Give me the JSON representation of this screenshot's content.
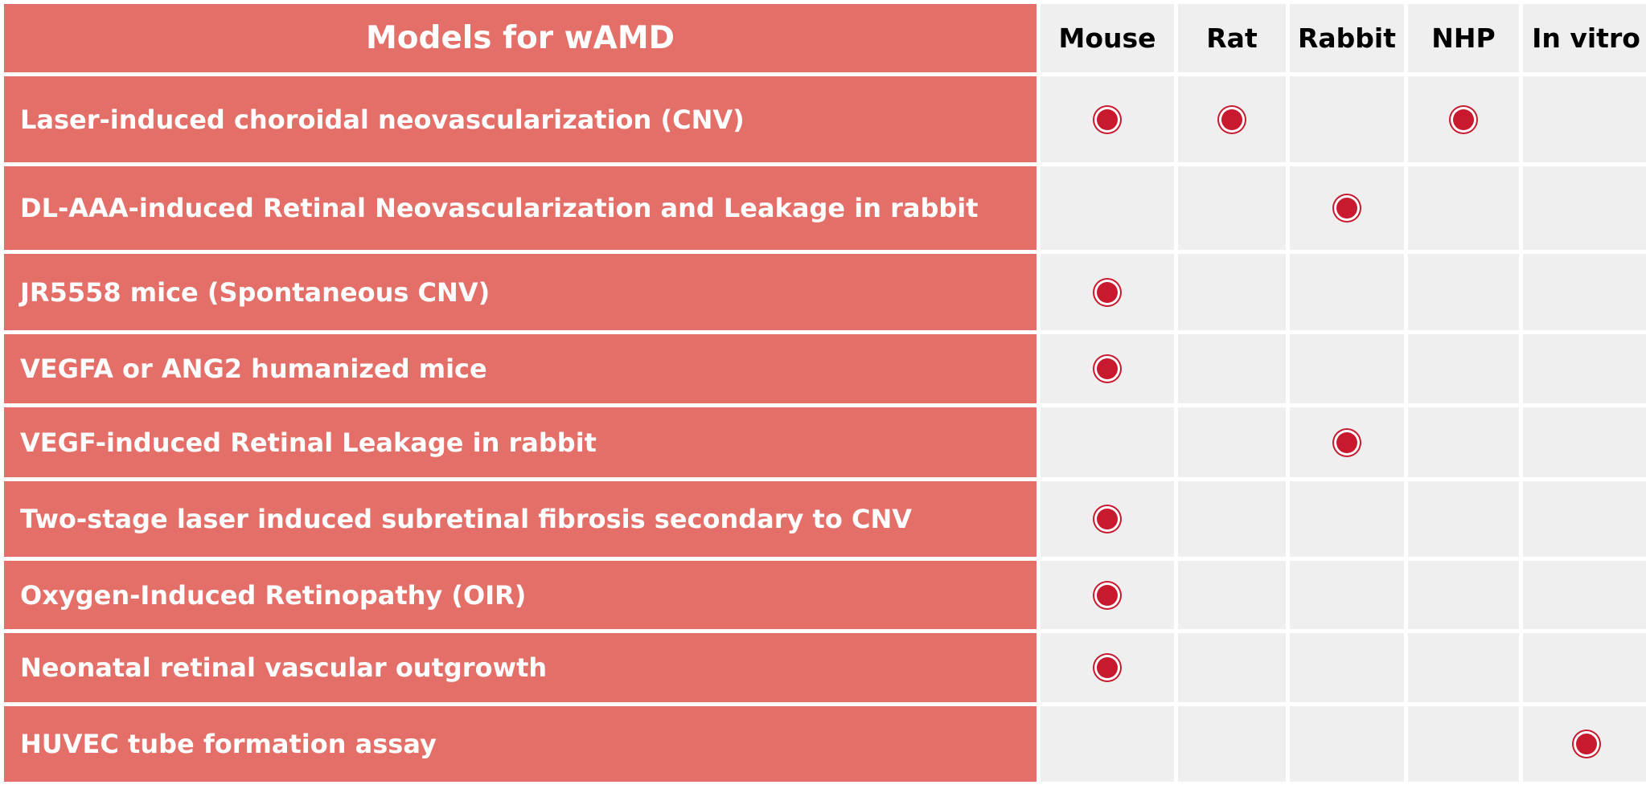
{
  "table": {
    "title": "Models for wAMD",
    "species": [
      "Mouse",
      "Rat",
      "Rabbit",
      "NHP",
      "In vitro"
    ],
    "rows": [
      {
        "name": "Laser-induced choroidal neovascularization (CNV)",
        "marks": [
          true,
          true,
          false,
          true,
          false
        ]
      },
      {
        "name": "DL-AAA-induced Retinal Neovascularization and Leakage in rabbit",
        "marks": [
          false,
          false,
          true,
          false,
          false
        ]
      },
      {
        "name": "JR5558 mice (Spontaneous CNV)",
        "marks": [
          true,
          false,
          false,
          false,
          false
        ]
      },
      {
        "name": "VEGFA or ANG2 humanized mice",
        "marks": [
          true,
          false,
          false,
          false,
          false
        ]
      },
      {
        "name": "VEGF-induced Retinal Leakage in rabbit",
        "marks": [
          false,
          false,
          true,
          false,
          false
        ]
      },
      {
        "name": "Two-stage laser induced subretinal fibrosis secondary to CNV",
        "marks": [
          true,
          false,
          false,
          false,
          false
        ]
      },
      {
        "name": "Oxygen-Induced Retinopathy (OIR)",
        "marks": [
          true,
          false,
          false,
          false,
          false
        ]
      },
      {
        "name": "Neonatal retinal vascular outgrowth",
        "marks": [
          true,
          false,
          false,
          false,
          false
        ]
      },
      {
        "name": "HUVEC tube formation assay",
        "marks": [
          false,
          false,
          false,
          false,
          true
        ]
      }
    ]
  },
  "colors": {
    "model_cell": "#e46f68",
    "species_cell": "#efefef",
    "mark": "#c8192e"
  },
  "icons": {
    "mark": "filled-circle-icon"
  }
}
